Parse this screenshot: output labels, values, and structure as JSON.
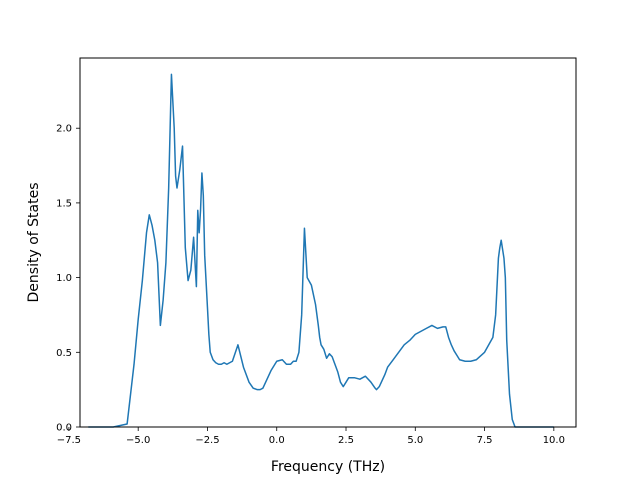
{
  "chart_data": {
    "type": "line",
    "title": "",
    "xlabel": "Frequency (THz)",
    "ylabel": "Density of States",
    "xlim": [
      -7.1,
      10.8
    ],
    "ylim": [
      0.0,
      2.47
    ],
    "grid": false,
    "legend": "none",
    "line_color": "#1f77b4",
    "xticks": [
      -7.5,
      -5.0,
      -2.5,
      0.0,
      2.5,
      5.0,
      7.5,
      10.0
    ],
    "xtick_labels": [
      "−7.5",
      "−5.0",
      "−2.5",
      "0.0",
      "2.5",
      "5.0",
      "7.5",
      "10.0"
    ],
    "yticks": [
      0.0,
      0.5,
      1.0,
      1.5,
      2.0
    ],
    "ytick_labels": [
      "0.0",
      "0.5",
      "1.0",
      "1.5",
      "2.0"
    ],
    "series": [
      {
        "x": [
          -6.8,
          -5.9,
          -5.4,
          -5.3,
          -5.15,
          -5.0,
          -4.85,
          -4.7,
          -4.6,
          -4.5,
          -4.4,
          -4.3,
          -4.2,
          -4.1,
          -4.0,
          -3.9,
          -3.8,
          -3.7,
          -3.65,
          -3.6,
          -3.5,
          -3.4,
          -3.3,
          -3.2,
          -3.1,
          -3.0,
          -2.9,
          -2.85,
          -2.8,
          -2.75,
          -2.7,
          -2.65,
          -2.6,
          -2.5,
          -2.45,
          -2.4,
          -2.3,
          -2.2,
          -2.1,
          -2.0,
          -1.9,
          -1.8,
          -1.6,
          -1.4,
          -1.2,
          -1.0,
          -0.85,
          -0.7,
          -0.6,
          -0.5,
          -0.35,
          -0.2,
          0.0,
          0.2,
          0.35,
          0.5,
          0.6,
          0.7,
          0.8,
          0.9,
          1.0,
          1.1,
          1.25,
          1.4,
          1.5,
          1.55,
          1.6,
          1.7,
          1.8,
          1.9,
          2.0,
          2.1,
          2.2,
          2.3,
          2.4,
          2.5,
          2.6,
          2.8,
          3.0,
          3.2,
          3.4,
          3.55,
          3.6,
          3.7,
          3.8,
          3.9,
          4.0,
          4.2,
          4.4,
          4.6,
          4.8,
          4.9,
          5.0,
          5.2,
          5.4,
          5.6,
          5.8,
          6.0,
          6.1,
          6.2,
          6.3,
          6.4,
          6.5,
          6.6,
          6.8,
          7.0,
          7.2,
          7.5,
          7.8,
          7.9,
          8.0,
          8.05,
          8.1,
          8.2,
          8.25,
          8.3,
          8.4,
          8.5,
          8.6,
          8.7,
          8.9,
          9.5,
          10.0
        ],
        "y": [
          0.0,
          0.0,
          0.02,
          0.18,
          0.42,
          0.72,
          0.98,
          1.3,
          1.42,
          1.35,
          1.25,
          1.1,
          0.68,
          0.85,
          1.1,
          1.6,
          2.36,
          2.0,
          1.68,
          1.6,
          1.72,
          1.88,
          1.2,
          0.98,
          1.05,
          1.27,
          0.94,
          1.45,
          1.3,
          1.45,
          1.7,
          1.55,
          1.15,
          0.8,
          0.62,
          0.5,
          0.45,
          0.43,
          0.42,
          0.42,
          0.43,
          0.42,
          0.44,
          0.55,
          0.4,
          0.3,
          0.26,
          0.25,
          0.25,
          0.26,
          0.32,
          0.38,
          0.44,
          0.45,
          0.42,
          0.42,
          0.44,
          0.44,
          0.5,
          0.75,
          1.33,
          1.0,
          0.95,
          0.82,
          0.68,
          0.6,
          0.55,
          0.52,
          0.46,
          0.49,
          0.47,
          0.42,
          0.37,
          0.3,
          0.27,
          0.3,
          0.33,
          0.33,
          0.32,
          0.34,
          0.3,
          0.26,
          0.25,
          0.27,
          0.31,
          0.35,
          0.4,
          0.45,
          0.5,
          0.55,
          0.58,
          0.6,
          0.62,
          0.64,
          0.66,
          0.68,
          0.66,
          0.67,
          0.67,
          0.6,
          0.55,
          0.51,
          0.48,
          0.45,
          0.44,
          0.44,
          0.45,
          0.5,
          0.6,
          0.75,
          1.13,
          1.2,
          1.25,
          1.13,
          1.0,
          0.58,
          0.22,
          0.05,
          0.0,
          0.0,
          0.0,
          0.0,
          0.0
        ]
      }
    ]
  }
}
